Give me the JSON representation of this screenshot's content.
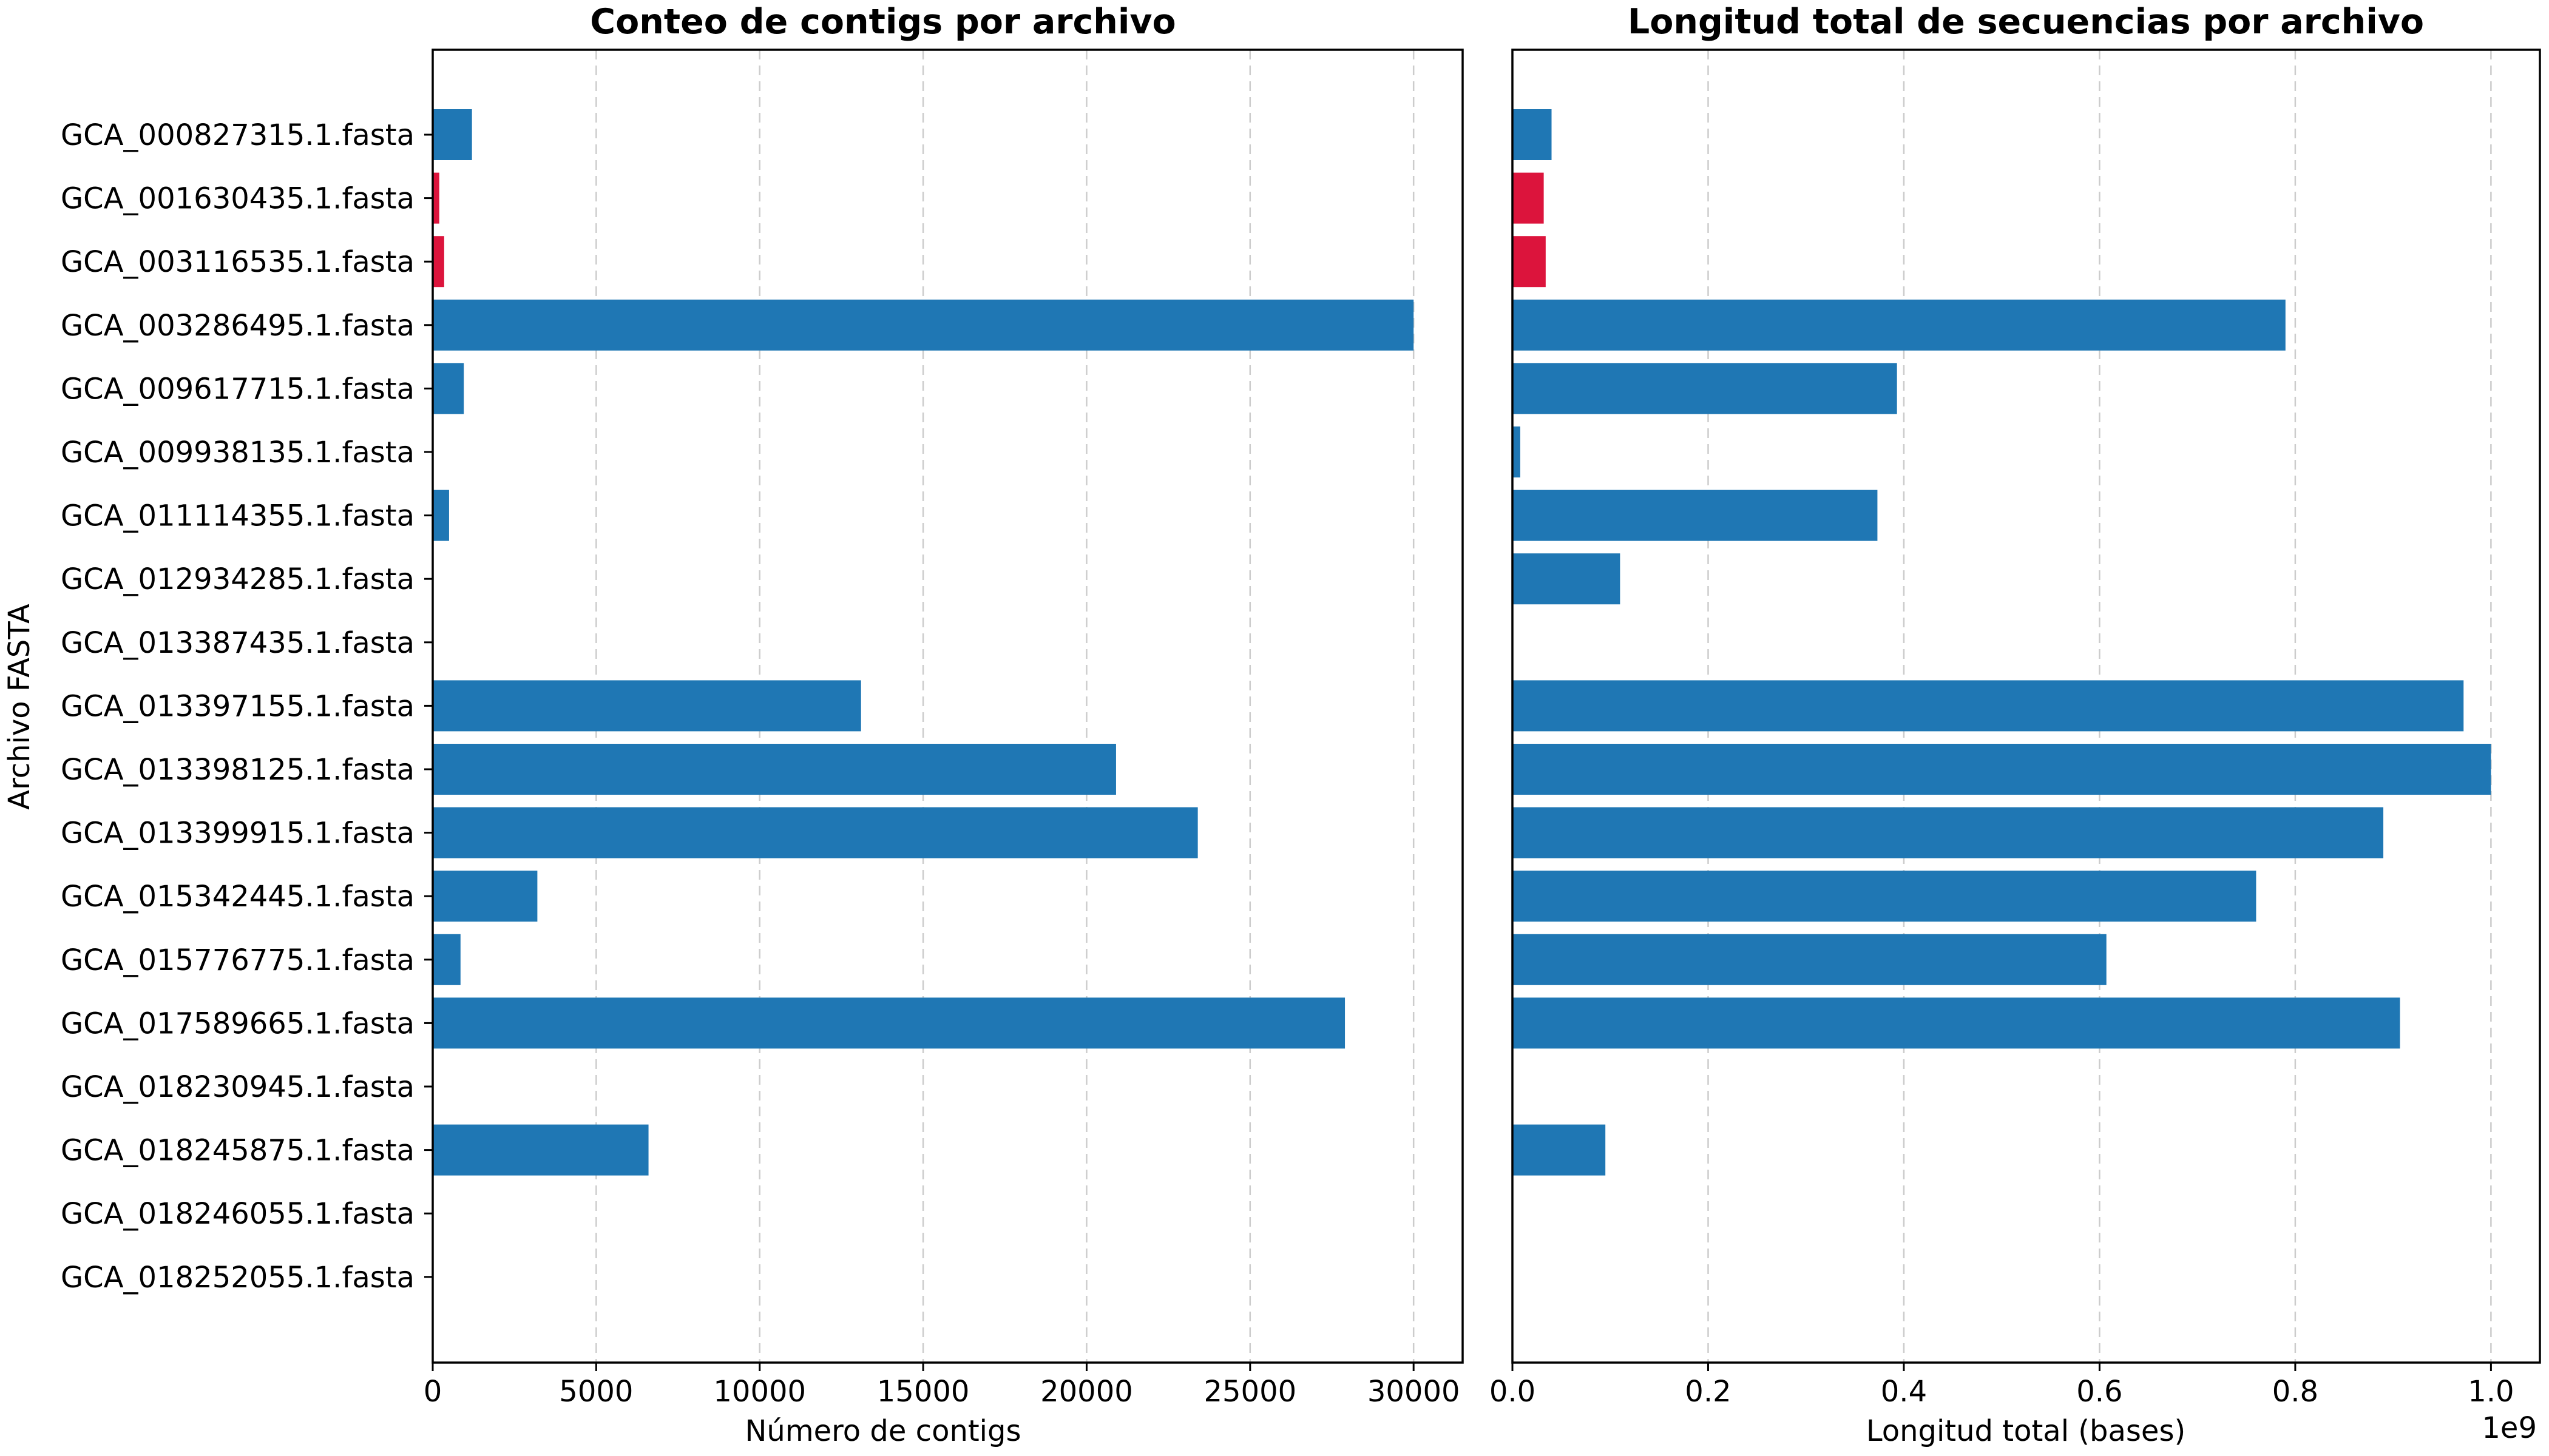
{
  "chart_data": [
    {
      "type": "bar",
      "orientation": "horizontal",
      "title": "Conteo de contigs por archivo",
      "xlabel": "Número de contigs",
      "ylabel": "Archivo FASTA",
      "xlim": [
        0,
        31500
      ],
      "xticks": [
        0,
        5000,
        10000,
        15000,
        20000,
        25000,
        30000
      ],
      "xtick_labels": [
        "0",
        "5000",
        "10000",
        "15000",
        "20000",
        "25000",
        "30000"
      ],
      "grid": "x, dashed",
      "categories": [
        "GCA_000827315.1.fasta",
        "GCA_001630435.1.fasta",
        "GCA_003116535.1.fasta",
        "GCA_003286495.1.fasta",
        "GCA_009617715.1.fasta",
        "GCA_009938135.1.fasta",
        "GCA_011114355.1.fasta",
        "GCA_012934285.1.fasta",
        "GCA_013387435.1.fasta",
        "GCA_013397155.1.fasta",
        "GCA_013398125.1.fasta",
        "GCA_013399915.1.fasta",
        "GCA_015342445.1.fasta",
        "GCA_015776775.1.fasta",
        "GCA_017589665.1.fasta",
        "GCA_018230945.1.fasta",
        "GCA_018245875.1.fasta",
        "GCA_018246055.1.fasta",
        "GCA_018252055.1.fasta"
      ],
      "values": [
        1200,
        200,
        350,
        30000,
        950,
        0,
        500,
        0,
        0,
        13100,
        20900,
        23400,
        3200,
        850,
        27900,
        0,
        6600,
        0,
        0
      ],
      "colors": [
        "#1f77b4",
        "#dc143c",
        "#dc143c",
        "#1f77b4",
        "#1f77b4",
        "#1f77b4",
        "#1f77b4",
        "#1f77b4",
        "#1f77b4",
        "#1f77b4",
        "#1f77b4",
        "#1f77b4",
        "#1f77b4",
        "#1f77b4",
        "#1f77b4",
        "#1f77b4",
        "#1f77b4",
        "#1f77b4",
        "#1f77b4"
      ]
    },
    {
      "type": "bar",
      "orientation": "horizontal",
      "title": "Longitud total de secuencias por archivo",
      "xlabel": "Longitud total (bases)",
      "offset_label": "1e9",
      "xlim": [
        0,
        1.05
      ],
      "xticks": [
        0,
        0.2,
        0.4,
        0.6,
        0.8,
        1.0
      ],
      "xtick_labels": [
        "0.0",
        "0.2",
        "0.4",
        "0.6",
        "0.8",
        "1.0"
      ],
      "grid": "x, dashed",
      "values": [
        0.04,
        0.032,
        0.034,
        0.79,
        0.393,
        0.008,
        0.373,
        0.11,
        0,
        0.972,
        1.0,
        0.89,
        0.76,
        0.607,
        0.907,
        0,
        0.095,
        0,
        0
      ],
      "colors": [
        "#1f77b4",
        "#dc143c",
        "#dc143c",
        "#1f77b4",
        "#1f77b4",
        "#1f77b4",
        "#1f77b4",
        "#1f77b4",
        "#1f77b4",
        "#1f77b4",
        "#1f77b4",
        "#1f77b4",
        "#1f77b4",
        "#1f77b4",
        "#1f77b4",
        "#1f77b4",
        "#1f77b4",
        "#1f77b4",
        "#1f77b4"
      ]
    }
  ]
}
